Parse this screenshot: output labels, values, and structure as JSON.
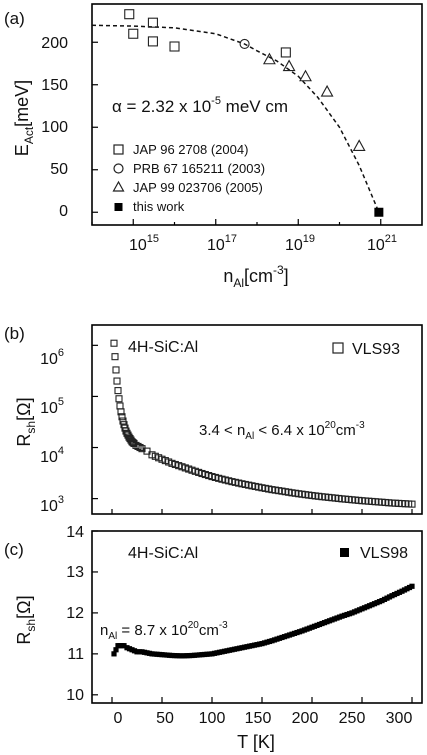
{
  "panels": [
    {
      "panel_label": "(a)",
      "ylabel_main": "E",
      "ylabel_sub": "Act",
      "ylabel_unit": "[meV]",
      "xlabel_main": "n",
      "xlabel_sub": "Al",
      "xlabel_unit": "[cm",
      "xlabel_exp": "-3",
      "xlabel_close": "]",
      "annotation": "α = 2.32 x 10",
      "annotation_exp": "-5",
      "annotation_tail": " meV cm",
      "yticks": [
        "0",
        "50",
        "100",
        "150",
        "200"
      ],
      "xticks": [
        {
          "base": "10",
          "exp": "15"
        },
        {
          "base": "10",
          "exp": "17"
        },
        {
          "base": "10",
          "exp": "19"
        },
        {
          "base": "10",
          "exp": "21"
        }
      ],
      "legend": [
        {
          "label": "JAP 96 2708 (2004)",
          "marker": "square-open"
        },
        {
          "label": "PRB 67 165211 (2003)",
          "marker": "circle-open"
        },
        {
          "label": "JAP 99 023706 (2005)",
          "marker": "triangle-open"
        },
        {
          "label": "this work",
          "marker": "square-filled"
        }
      ]
    },
    {
      "panel_label": "(b)",
      "ylabel_main": "R",
      "ylabel_sub": "sh",
      "ylabel_unit": "[Ω]",
      "material": "4H-SiC:Al",
      "sample": "VLS93",
      "annotation": "3.4 < n",
      "annotation_sub": "Al",
      "annotation_tail": " < 6.4 x 10",
      "annotation_exp": "20",
      "annotation_unit": "cm",
      "annotation_unit_exp": "-3",
      "yticks": [
        {
          "base": "10",
          "exp": "3"
        },
        {
          "base": "10",
          "exp": "4"
        },
        {
          "base": "10",
          "exp": "5"
        },
        {
          "base": "10",
          "exp": "6"
        }
      ]
    },
    {
      "panel_label": "(c)",
      "ylabel_main": "R",
      "ylabel_sub": "sh",
      "ylabel_unit": "[Ω]",
      "material": "4H-SiC:Al",
      "sample": "VLS98",
      "annotation": "n",
      "annotation_sub": "Al",
      "annotation_tail": " = 8.7 x 10",
      "annotation_exp": "20",
      "annotation_unit": "cm",
      "annotation_unit_exp": "-3",
      "yticks": [
        "10",
        "11",
        "12",
        "13",
        "14"
      ],
      "xticks": [
        "0",
        "50",
        "100",
        "150",
        "200",
        "250",
        "300"
      ],
      "xlabel": "T [K]"
    }
  ],
  "chart_data": [
    {
      "type": "scatter",
      "panel": "(a)",
      "xscale": "log",
      "xlim": [
        100000000000000.0,
        1e+22
      ],
      "ylim": [
        -15,
        245
      ],
      "series": [
        {
          "name": "JAP 96 2708 (2004)",
          "marker": "square-open",
          "x": [
            800000000000000.0,
            1000000000000000.0,
            3000000000000000.0,
            3000000000000000.0,
            1e+16,
            5e+18
          ],
          "y": [
            233,
            210,
            223,
            201,
            195,
            188
          ]
        },
        {
          "name": "PRB 67 165211 (2003)",
          "marker": "circle-open",
          "x": [
            5e+17
          ],
          "y": [
            198
          ]
        },
        {
          "name": "JAP 99 023706 (2005)",
          "marker": "triangle-open",
          "x": [
            2e+18,
            6e+18,
            1.5e+19,
            5e+19,
            3e+20
          ],
          "y": [
            180,
            172,
            160,
            142,
            78
          ]
        },
        {
          "name": "this work",
          "marker": "square-filled",
          "x": [
            9e+20
          ],
          "y": [
            0
          ]
        }
      ],
      "fit": {
        "style": "dashed",
        "x": [
          100000000000000.0,
          1000000000000000.0,
          1e+16,
          1e+17,
          5e+17,
          1e+18,
          3e+18,
          1e+19,
          3e+19,
          1e+20,
          3e+20,
          9e+20
        ],
        "y": [
          220,
          219,
          217,
          210,
          198,
          190,
          178,
          160,
          135,
          100,
          55,
          0
        ]
      }
    },
    {
      "type": "scatter",
      "panel": "(b)",
      "yscale": "log",
      "xlim": [
        -20,
        310
      ],
      "ylim": [
        500,
        2500000
      ],
      "series": [
        {
          "name": "VLS93",
          "marker": "square-open",
          "x": [
            2,
            3,
            4,
            5,
            6,
            7,
            8,
            9,
            10,
            11,
            12,
            13,
            14,
            15,
            16,
            17,
            18,
            19,
            20,
            21,
            22,
            24,
            26,
            28,
            30,
            35,
            40,
            50,
            60,
            70,
            80,
            90,
            100,
            110,
            120,
            130,
            140,
            150,
            160,
            170,
            180,
            190,
            200,
            210,
            220,
            230,
            240,
            250,
            260,
            270,
            280,
            290,
            300
          ],
          "y": [
            1100000,
            600000,
            330000,
            200000,
            130000,
            90000,
            65000,
            50000,
            40000,
            33000,
            28000,
            24000,
            21000,
            19000,
            17500,
            16000,
            15000,
            14000,
            13000,
            12500,
            12000,
            11000,
            10500,
            10000,
            9500,
            8500,
            7200,
            5900,
            4900,
            4200,
            3600,
            3100,
            2700,
            2400,
            2150,
            1950,
            1780,
            1630,
            1500,
            1400,
            1300,
            1220,
            1150,
            1090,
            1040,
            990,
            950,
            910,
            880,
            850,
            820,
            800,
            780
          ]
        }
      ]
    },
    {
      "type": "scatter",
      "panel": "(c)",
      "xlabel": "T [K]",
      "xlim": [
        -20,
        310
      ],
      "ylim": [
        9.8,
        14
      ],
      "series": [
        {
          "name": "VLS98",
          "marker": "square-filled",
          "x": [
            2,
            4,
            6,
            8,
            10,
            12,
            15,
            20,
            25,
            30,
            40,
            50,
            60,
            70,
            80,
            90,
            100,
            110,
            120,
            130,
            140,
            150,
            160,
            170,
            180,
            190,
            200,
            210,
            220,
            230,
            240,
            250,
            260,
            270,
            280,
            290,
            300
          ],
          "y": [
            11.0,
            11.1,
            11.2,
            11.2,
            11.2,
            11.2,
            11.15,
            11.1,
            11.05,
            11.05,
            11.0,
            10.98,
            10.96,
            10.95,
            10.96,
            10.98,
            11.0,
            11.05,
            11.1,
            11.15,
            11.2,
            11.25,
            11.32,
            11.4,
            11.48,
            11.56,
            11.65,
            11.74,
            11.83,
            11.92,
            12.0,
            12.1,
            12.2,
            12.3,
            12.42,
            12.53,
            12.65
          ]
        }
      ]
    }
  ]
}
